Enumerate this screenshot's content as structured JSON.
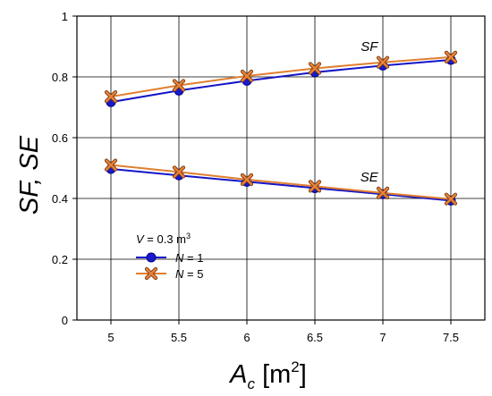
{
  "chart_data": {
    "type": "line",
    "x": [
      5,
      5.5,
      6,
      6.5,
      7,
      7.5
    ],
    "xlim": [
      4.75,
      7.75
    ],
    "ylim": [
      0,
      1
    ],
    "xticks": [
      "5",
      "5.5",
      "6",
      "6.5",
      "7",
      "7.5"
    ],
    "yticks": [
      "0",
      "0.2",
      "0.4",
      "0.6",
      "0.8",
      "1"
    ],
    "xlabel": {
      "main": "A",
      "sub": "c",
      "unit_open": " [m",
      "unit_sup": "2",
      "unit_close": "]"
    },
    "ylabel": "SF, SE",
    "grid": true,
    "legend": {
      "placement": "lower-left",
      "title_var": "V",
      "title_eq": " = 0.3 m",
      "title_sup": "3"
    },
    "annotations": [
      {
        "text": "SF",
        "x": 6.9,
        "y": 0.9
      },
      {
        "text": "SE",
        "x": 6.9,
        "y": 0.47
      }
    ],
    "series": [
      {
        "name": "N = 1",
        "label_var": "N",
        "label_val": " = 1",
        "group": "SF",
        "marker": "circle",
        "color": "#1515c8",
        "marker_fill": "#1a1acc",
        "values": [
          0.717,
          0.755,
          0.787,
          0.815,
          0.837,
          0.856
        ]
      },
      {
        "name": "N = 5",
        "label_var": "N",
        "label_val": " = 5",
        "group": "SF",
        "marker": "x",
        "color": "#e07f30",
        "marker_fill": "#e8833a",
        "values": [
          0.735,
          0.772,
          0.803,
          0.828,
          0.848,
          0.865
        ]
      },
      {
        "name": "N = 1",
        "label_var": "N",
        "label_val": " = 1",
        "group": "SE",
        "marker": "circle",
        "color": "#1515c8",
        "marker_fill": "#1a1acc",
        "values": [
          0.497,
          0.476,
          0.455,
          0.434,
          0.414,
          0.393
        ]
      },
      {
        "name": "N = 5",
        "label_var": "N",
        "label_val": " = 5",
        "group": "SE",
        "marker": "x",
        "color": "#e07f30",
        "marker_fill": "#e8833a",
        "values": [
          0.51,
          0.487,
          0.462,
          0.44,
          0.418,
          0.398
        ]
      }
    ]
  }
}
